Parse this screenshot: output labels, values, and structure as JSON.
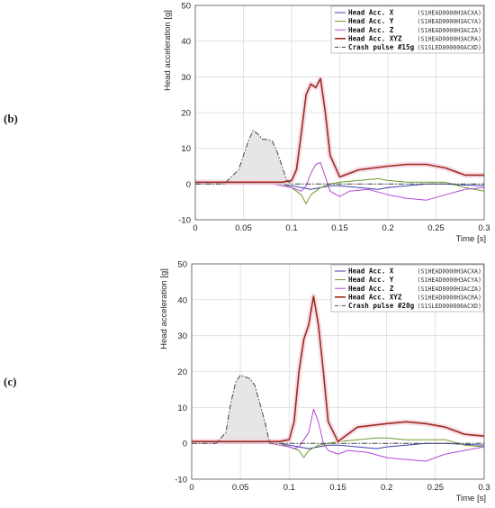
{
  "panels": [
    {
      "label": "(b)"
    },
    {
      "label": "(c)"
    }
  ],
  "colors": {
    "head_x": "#3b3fa8",
    "head_y": "#6f9a2a",
    "head_z": "#b048d8",
    "head_xyz": "#a12a1a",
    "crash": "#444444",
    "crash_fill": "#e6e6e6",
    "halo": "#f3d6e6"
  },
  "chart_data": [
    {
      "type": "line",
      "title": "",
      "xlabel": "Time [s]",
      "ylabel": "Head acceleration [g]",
      "xlim": [
        0,
        0.3
      ],
      "ylim": [
        -10,
        50
      ],
      "xticks": [
        "0",
        "0.05",
        "0.1",
        "0.15",
        "0.2",
        "0.25",
        "0.3"
      ],
      "yticks": [
        "-10",
        "0",
        "10",
        "20",
        "30",
        "40",
        "50"
      ],
      "grid": true,
      "legend_position": "top-right",
      "series": [
        {
          "name": "Head Acc. X",
          "code": "(S1HEAD0000H3ACXA)",
          "color_key": "head_x",
          "x": [
            0,
            0.05,
            0.09,
            0.1,
            0.11,
            0.12,
            0.13,
            0.14,
            0.15,
            0.17,
            0.19,
            0.2,
            0.22,
            0.24,
            0.26,
            0.28,
            0.3
          ],
          "y": [
            0,
            0.2,
            0,
            -0.5,
            -1,
            -1.5,
            -1,
            -0.5,
            -0.5,
            -1,
            -1.5,
            -1,
            -0.5,
            0,
            0,
            -0.3,
            -0.5
          ]
        },
        {
          "name": "Head Acc. Y",
          "code": "(S1HEAD0000H3ACYA)",
          "color_key": "head_y",
          "x": [
            0,
            0.05,
            0.09,
            0.1,
            0.11,
            0.115,
            0.12,
            0.13,
            0.14,
            0.15,
            0.17,
            0.19,
            0.2,
            0.22,
            0.24,
            0.26,
            0.28,
            0.3
          ],
          "y": [
            0,
            0.2,
            0,
            -1,
            -3,
            -5.5,
            -3,
            -1,
            0,
            0.5,
            1,
            1.5,
            1,
            0.5,
            0.5,
            0.5,
            -1,
            -2
          ]
        },
        {
          "name": "Head Acc. Z",
          "code": "(S1HEAD0000H3ACZA)",
          "color_key": "head_z",
          "x": [
            0,
            0.05,
            0.08,
            0.1,
            0.105,
            0.11,
            0.115,
            0.12,
            0.125,
            0.13,
            0.135,
            0.14,
            0.15,
            0.16,
            0.18,
            0.2,
            0.22,
            0.24,
            0.26,
            0.28,
            0.3
          ],
          "y": [
            0,
            0,
            0,
            -1,
            -1.5,
            -2,
            -0.5,
            3,
            5.5,
            6,
            2,
            -2,
            -3.5,
            -2,
            -1.5,
            -3,
            -4,
            -4.5,
            -3,
            -1.5,
            -1
          ]
        },
        {
          "name": "Head Acc. XYZ",
          "code": "(S1HEAD0000H3ACRA)",
          "color_key": "head_xyz",
          "x": [
            0,
            0.05,
            0.09,
            0.1,
            0.105,
            0.11,
            0.115,
            0.12,
            0.125,
            0.13,
            0.135,
            0.14,
            0.15,
            0.17,
            0.2,
            0.22,
            0.24,
            0.26,
            0.28,
            0.3
          ],
          "y": [
            0.5,
            0.5,
            0.5,
            1,
            4,
            14,
            25,
            28,
            27,
            29.5,
            20,
            8,
            2,
            4,
            5,
            5.5,
            5.5,
            4.5,
            2.5,
            2.5
          ]
        },
        {
          "name": "Crash pulse #15g",
          "code": "(S1SLED000000ACXD)",
          "color_key": "crash",
          "x": [
            0,
            0.03,
            0.045,
            0.055,
            0.06,
            0.065,
            0.07,
            0.075,
            0.08,
            0.085,
            0.095,
            0.1,
            0.15,
            0.2,
            0.25,
            0.3
          ],
          "y": [
            0,
            0,
            4,
            12,
            15,
            14,
            12.5,
            12.5,
            12,
            9,
            1,
            0,
            0,
            0,
            0,
            0
          ]
        }
      ]
    },
    {
      "type": "line",
      "title": "",
      "xlabel": "Time [s]",
      "ylabel": "Head acceleration [g]",
      "xlim": [
        0,
        0.3
      ],
      "ylim": [
        -10,
        50
      ],
      "xticks": [
        "0",
        "0.05",
        "0.1",
        "0.15",
        "0.2",
        "0.25",
        "0.3"
      ],
      "yticks": [
        "-10",
        "0",
        "10",
        "20",
        "30",
        "40",
        "50"
      ],
      "grid": true,
      "legend_position": "top-right",
      "series": [
        {
          "name": "Head Acc. X",
          "code": "(S1HEAD0000H3ACXA)",
          "color_key": "head_x",
          "x": [
            0,
            0.05,
            0.09,
            0.1,
            0.11,
            0.12,
            0.13,
            0.14,
            0.15,
            0.17,
            0.19,
            0.2,
            0.22,
            0.24,
            0.26,
            0.28,
            0.3
          ],
          "y": [
            0,
            0.2,
            0,
            -0.5,
            -1,
            -1.5,
            -1,
            -0.5,
            -0.5,
            -1,
            -1.5,
            -1,
            -0.5,
            0,
            0,
            -0.3,
            -0.5
          ]
        },
        {
          "name": "Head Acc. Y",
          "code": "(S1HEAD0000H3ACYA)",
          "color_key": "head_y",
          "x": [
            0,
            0.05,
            0.09,
            0.1,
            0.11,
            0.115,
            0.12,
            0.13,
            0.14,
            0.15,
            0.17,
            0.19,
            0.2,
            0.22,
            0.24,
            0.26,
            0.28,
            0.3
          ],
          "y": [
            0,
            0.2,
            0,
            -1,
            -2,
            -4,
            -2,
            -0.5,
            0,
            0.5,
            1,
            1.5,
            1.5,
            1,
            1,
            1,
            -0.5,
            -1
          ]
        },
        {
          "name": "Head Acc. Z",
          "code": "(S1HEAD0000H3ACZA)",
          "color_key": "head_z",
          "x": [
            0,
            0.05,
            0.08,
            0.1,
            0.105,
            0.11,
            0.115,
            0.12,
            0.125,
            0.13,
            0.135,
            0.14,
            0.15,
            0.16,
            0.18,
            0.2,
            0.22,
            0.24,
            0.26,
            0.28,
            0.3
          ],
          "y": [
            0,
            0,
            0,
            -1,
            -1.5,
            -1,
            1,
            3,
            9.5,
            6,
            0,
            -2,
            -3,
            -2,
            -2.5,
            -4,
            -4.5,
            -5,
            -3,
            -2,
            -1
          ]
        },
        {
          "name": "Head Acc. XYZ",
          "code": "(S1HEAD0000H3ACRA)",
          "color_key": "head_xyz",
          "x": [
            0,
            0.05,
            0.09,
            0.1,
            0.105,
            0.11,
            0.115,
            0.12,
            0.125,
            0.13,
            0.135,
            0.14,
            0.15,
            0.17,
            0.2,
            0.22,
            0.24,
            0.26,
            0.28,
            0.3
          ],
          "y": [
            0.5,
            0.5,
            0.5,
            1,
            6,
            20,
            29,
            33,
            41,
            33,
            20,
            6,
            0.5,
            4.5,
            5.5,
            6,
            5.5,
            4.5,
            2.5,
            2
          ]
        },
        {
          "name": "Crash pulse #20g",
          "code": "(S1SLED000000ACXD)",
          "color_key": "crash",
          "x": [
            0,
            0.025,
            0.035,
            0.04,
            0.045,
            0.05,
            0.055,
            0.06,
            0.065,
            0.075,
            0.08,
            0.1,
            0.15,
            0.2,
            0.25,
            0.3
          ],
          "y": [
            0,
            0,
            3,
            11,
            17,
            19,
            18.5,
            18,
            16,
            6,
            0,
            0,
            0,
            0,
            0,
            0
          ]
        }
      ]
    }
  ]
}
